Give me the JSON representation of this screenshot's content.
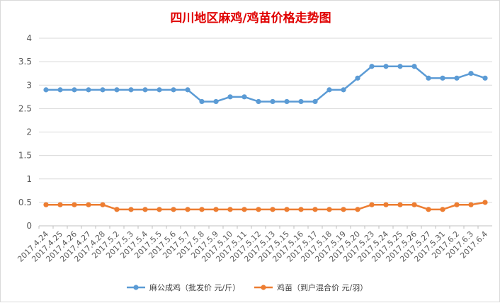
{
  "chart_data": {
    "type": "line",
    "title": "四川地区麻鸡/鸡苗价格走势图",
    "title_color": "#e00000",
    "categories": [
      "2017.4.24",
      "2017.4.25",
      "2017.4.26",
      "2017.4.27",
      "2017.4.28",
      "2017.5.2",
      "2017.5.3",
      "2017.5.4",
      "2017.5.5",
      "2017.5.6",
      "2017.5.7",
      "2017.5.8",
      "2017.5.9",
      "2017.5.10",
      "2017.5.11",
      "2017.5.12",
      "2017.5.13",
      "2017.5.15",
      "2017.5.16",
      "2017.5.17",
      "2017.5.18",
      "2017.5.19",
      "2017.5.20",
      "2017.5.23",
      "2017.5.24",
      "2017.5.25",
      "2017.5.26",
      "2017.5.27",
      "2017.5.31",
      "2017.6.2",
      "2017.6.3",
      "2017.6.4"
    ],
    "series": [
      {
        "name": "麻公成鸡（批发价 元/斤）",
        "color": "#5b9bd5",
        "values": [
          2.9,
          2.9,
          2.9,
          2.9,
          2.9,
          2.9,
          2.9,
          2.9,
          2.9,
          2.9,
          2.9,
          2.65,
          2.65,
          2.75,
          2.75,
          2.65,
          2.65,
          2.65,
          2.65,
          2.65,
          2.9,
          2.9,
          3.15,
          3.4,
          3.4,
          3.4,
          3.4,
          3.15,
          3.15,
          3.15,
          3.25,
          3.15
        ]
      },
      {
        "name": "鸡苗（到户混合价 元/羽）",
        "color": "#ed7d31",
        "values": [
          0.45,
          0.45,
          0.45,
          0.45,
          0.45,
          0.35,
          0.35,
          0.35,
          0.35,
          0.35,
          0.35,
          0.35,
          0.35,
          0.35,
          0.35,
          0.35,
          0.35,
          0.35,
          0.35,
          0.35,
          0.35,
          0.35,
          0.35,
          0.45,
          0.45,
          0.45,
          0.45,
          0.35,
          0.35,
          0.45,
          0.45,
          0.5
        ]
      }
    ],
    "ylim": [
      0,
      4
    ],
    "yticks": [
      "0",
      "0.5",
      "1",
      "1.5",
      "2",
      "2.5",
      "3",
      "3.5",
      "4"
    ],
    "grid": true,
    "legend_position": "bottom"
  }
}
